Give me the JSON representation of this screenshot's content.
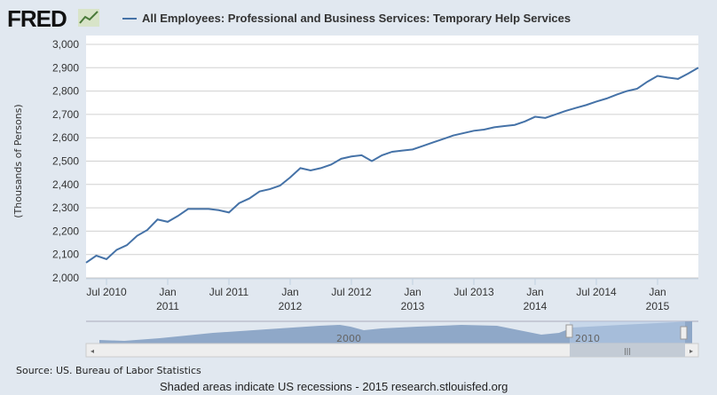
{
  "header": {
    "logo": "FRED",
    "legend_label": "All Employees: Professional and Business Services: Temporary Help Services"
  },
  "colors": {
    "line": "#4572a7",
    "background": "#e1e8f0",
    "plot": "#ffffff"
  },
  "chart_data": {
    "type": "line",
    "title": "All Employees: Professional and Business Services: Temporary Help Services",
    "ylabel": "(Thousands of Persons)",
    "xlabel": "",
    "ylim": [
      2000,
      3000
    ],
    "yticks": [
      "2,000",
      "2,100",
      "2,200",
      "2,300",
      "2,400",
      "2,500",
      "2,600",
      "2,700",
      "2,800",
      "2,900",
      "3,000"
    ],
    "xticks": [
      {
        "label": "Jul 2010",
        "month": 2
      },
      {
        "label": "Jan 2011",
        "month": 8
      },
      {
        "label": "Jul 2011",
        "month": 14
      },
      {
        "label": "Jan 2012",
        "month": 20
      },
      {
        "label": "Jul 2012",
        "month": 26
      },
      {
        "label": "Jan 2013",
        "month": 32
      },
      {
        "label": "Jul 2013",
        "month": 38
      },
      {
        "label": "Jan 2014",
        "month": 44
      },
      {
        "label": "Jul 2014",
        "month": 50
      },
      {
        "label": "Jan 2015",
        "month": 56
      }
    ],
    "x_start": "May 2010",
    "x_end": "May 2015",
    "series": [
      {
        "name": "All Employees: Professional and Business Services: Temporary Help Services",
        "values": [
          2065,
          2095,
          2080,
          2120,
          2140,
          2180,
          2205,
          2250,
          2240,
          2265,
          2295,
          2295,
          2295,
          2290,
          2280,
          2320,
          2340,
          2370,
          2380,
          2395,
          2430,
          2470,
          2460,
          2470,
          2485,
          2510,
          2520,
          2525,
          2500,
          2525,
          2540,
          2545,
          2550,
          2565,
          2580,
          2595,
          2610,
          2620,
          2630,
          2635,
          2645,
          2650,
          2655,
          2670,
          2690,
          2685,
          2700,
          2715,
          2728,
          2740,
          2755,
          2768,
          2785,
          2800,
          2810,
          2840,
          2865,
          2858,
          2852,
          2875,
          2900
        ]
      }
    ],
    "grid": true,
    "legend": "top"
  },
  "navigator": {
    "labels": [
      "2000",
      "2010"
    ]
  },
  "source": "Source: US. Bureau of Labor Statistics",
  "footer": "Shaded areas indicate US recessions - 2015 research.stlouisfed.org"
}
